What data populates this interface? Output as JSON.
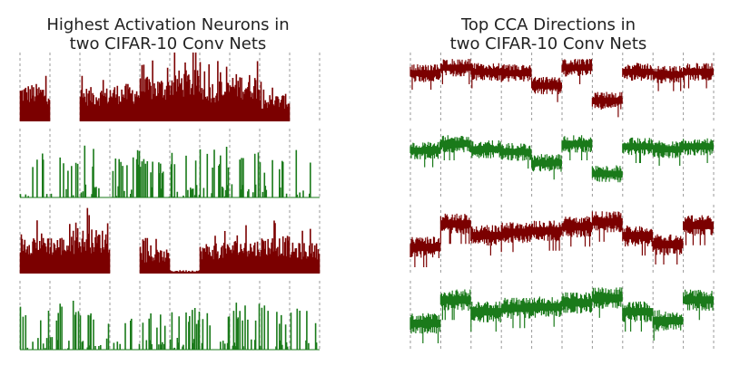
{
  "panels": [
    {
      "title_line1": "Highest Activation Neurons in",
      "title_line2": "two CIFAR-10 Conv Nets"
    },
    {
      "title_line1": "Top CCA Directions in",
      "title_line2": "two CIFAR-10 Conv Nets"
    }
  ],
  "chart_data": [
    {
      "type": "bar",
      "title": "Highest Activation Neurons in two CIFAR-10 Conv Nets",
      "xlabel": "",
      "ylabel": "",
      "grid": "vertical dashed lines at segment boundaries",
      "segments": 10,
      "ylim": [
        0,
        1
      ],
      "series": [
        {
          "color": "#7b0000",
          "segment_levels": [
            0.55,
            0.0,
            0.5,
            0.55,
            0.65,
            0.75,
            0.6,
            0.7,
            0.4,
            0.0
          ],
          "spikiness": "dense"
        },
        {
          "color": "#1a7a1a",
          "segment_levels": [
            0.5,
            0.45,
            0.6,
            0.55,
            0.5,
            0.55,
            0.6,
            0.55,
            0.5,
            0.55
          ],
          "spikiness": "sparse"
        },
        {
          "color": "#7b0000",
          "segment_levels": [
            0.6,
            0.55,
            0.65,
            0.0,
            0.35,
            0.05,
            0.45,
            0.5,
            0.55,
            0.45
          ],
          "spikiness": "dense"
        },
        {
          "color": "#1a7a1a",
          "segment_levels": [
            0.5,
            0.55,
            0.5,
            0.5,
            0.45,
            0.5,
            0.45,
            0.55,
            0.5,
            0.55
          ],
          "spikiness": "sparse"
        }
      ]
    },
    {
      "type": "line",
      "title": "Top CCA Directions in two CIFAR-10 Conv Nets",
      "xlabel": "",
      "ylabel": "",
      "grid": "vertical dashed lines at segment boundaries",
      "segments": 10,
      "ylim": [
        0,
        1
      ],
      "series": [
        {
          "color": "#7b0000",
          "segment_levels": [
            0.7,
            0.78,
            0.72,
            0.7,
            0.52,
            0.78,
            0.3,
            0.72,
            0.68,
            0.72
          ],
          "noise": 0.1
        },
        {
          "color": "#1a7a1a",
          "segment_levels": [
            0.68,
            0.78,
            0.7,
            0.66,
            0.5,
            0.78,
            0.34,
            0.74,
            0.7,
            0.74
          ],
          "noise": 0.1
        },
        {
          "color": "#7b0000",
          "segment_levels": [
            0.38,
            0.72,
            0.55,
            0.6,
            0.62,
            0.68,
            0.75,
            0.55,
            0.42,
            0.7
          ],
          "noise": 0.12
        },
        {
          "color": "#1a7a1a",
          "segment_levels": [
            0.38,
            0.72,
            0.55,
            0.6,
            0.62,
            0.68,
            0.75,
            0.55,
            0.42,
            0.72
          ],
          "noise": 0.12
        }
      ]
    }
  ]
}
